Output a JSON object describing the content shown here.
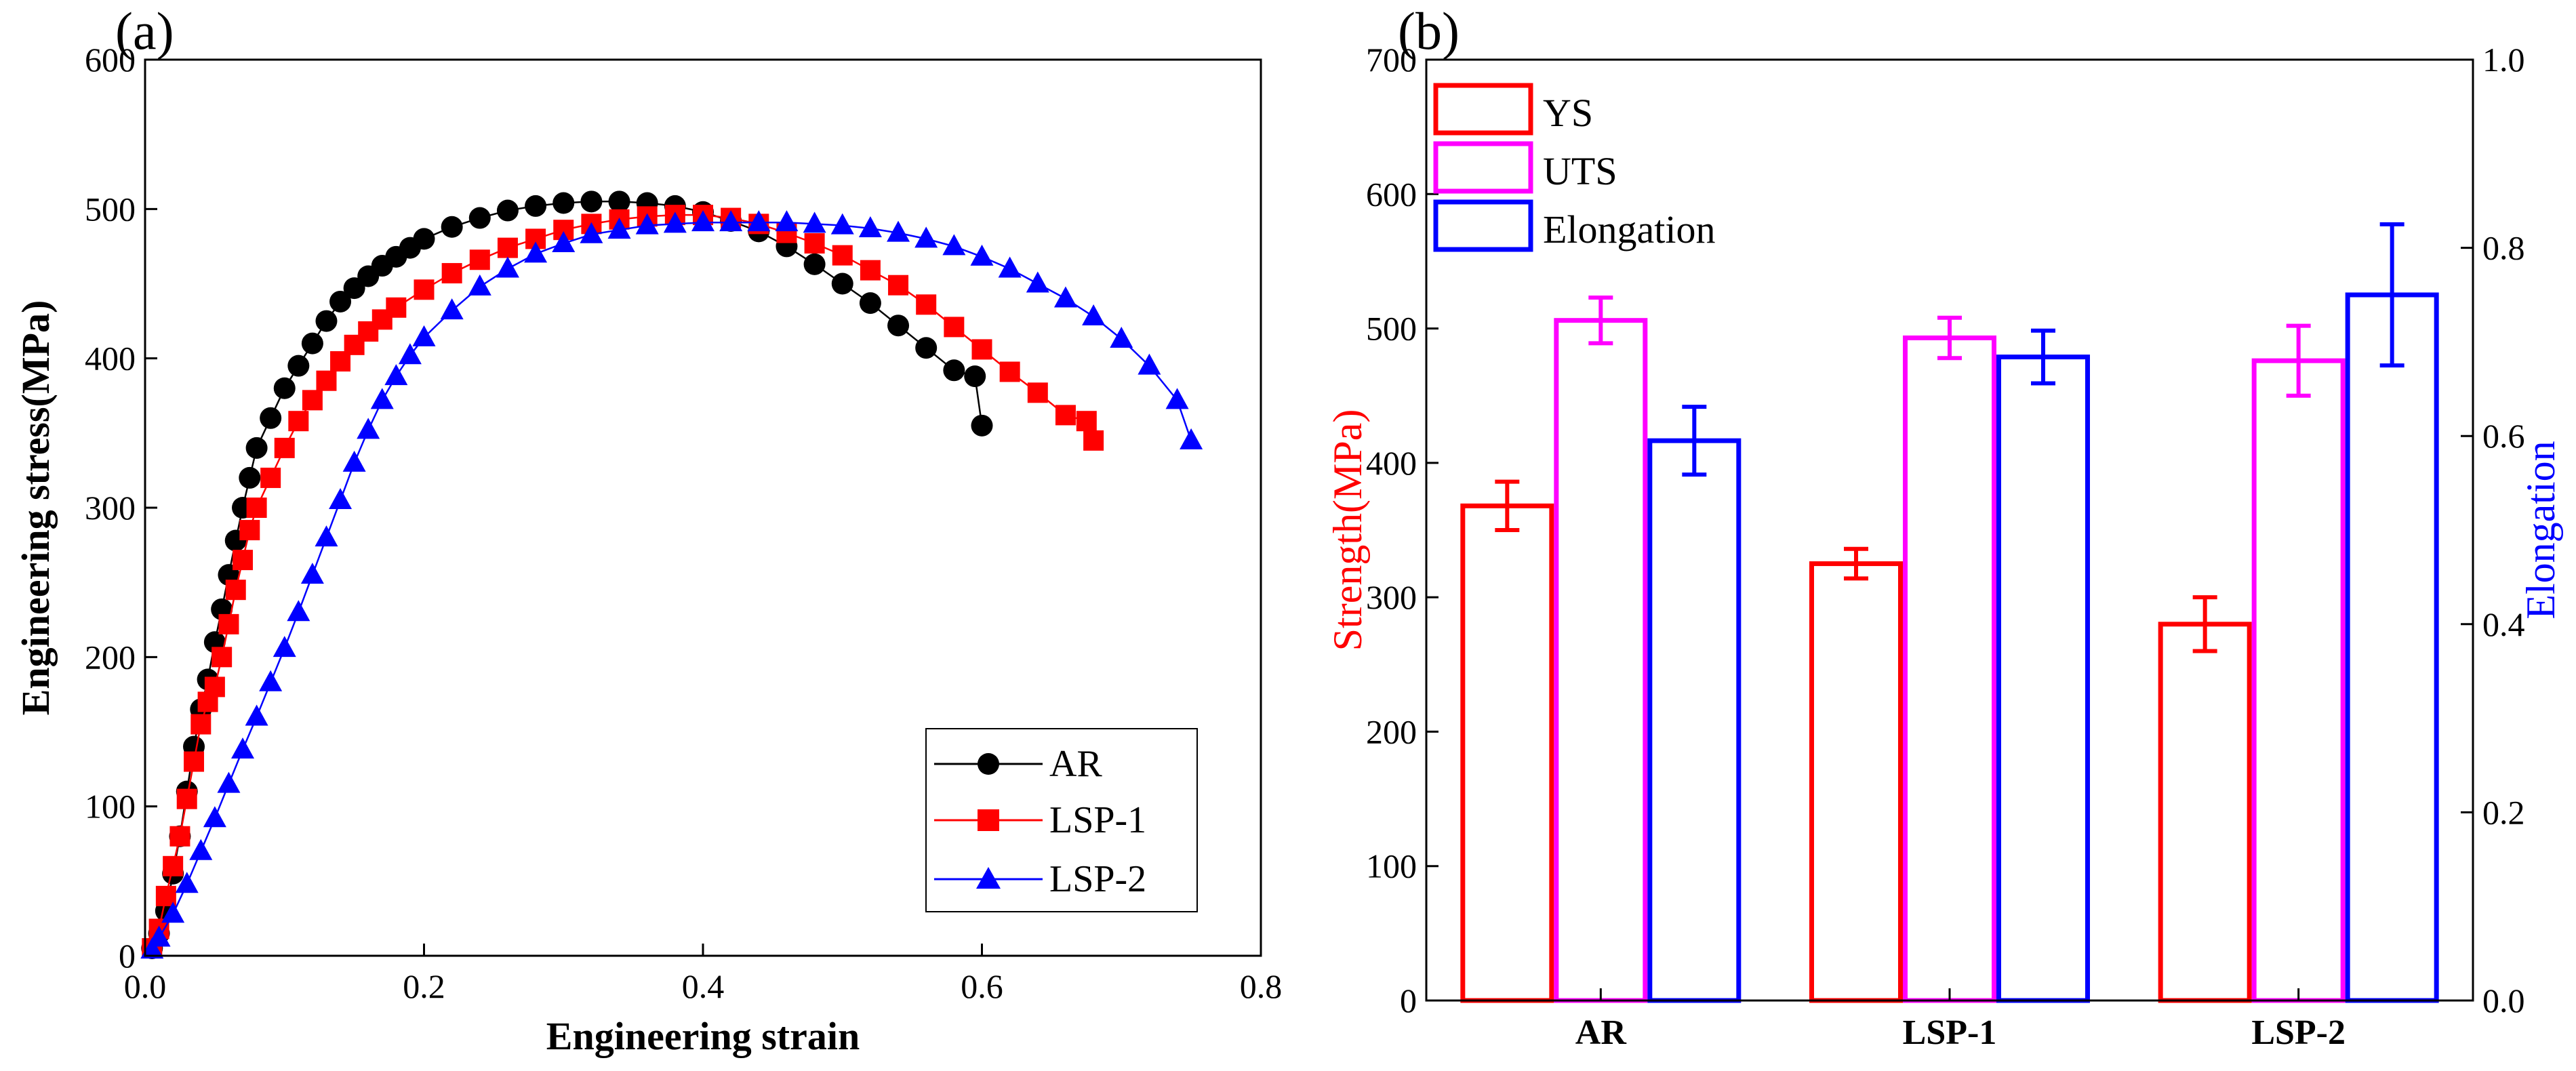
{
  "panels": {
    "a_label": "(a)",
    "b_label": "(b)"
  },
  "colors": {
    "black": "#000000",
    "red": "#ff0000",
    "magenta": "#ff00ff",
    "blue": "#0000ff"
  },
  "chart_data": [
    {
      "type": "line",
      "panel": "(a)",
      "xlabel": "Engineering strain",
      "ylabel": "Engineering stress(MPa)",
      "xlim": [
        0.0,
        0.8
      ],
      "ylim": [
        0,
        600
      ],
      "xticks": [
        0.0,
        0.2,
        0.4,
        0.6,
        0.8
      ],
      "xtick_labels": [
        "0.0",
        "0.2",
        "0.4",
        "0.6",
        "0.8"
      ],
      "yticks": [
        0,
        100,
        200,
        300,
        400,
        500,
        600
      ],
      "ytick_labels": [
        "0",
        "100",
        "200",
        "300",
        "400",
        "500",
        "600"
      ],
      "legend_position": "bottom-right",
      "series": [
        {
          "name": "AR",
          "marker": "circle",
          "color": "#000000",
          "x": [
            0.005,
            0.01,
            0.015,
            0.02,
            0.025,
            0.03,
            0.035,
            0.04,
            0.045,
            0.05,
            0.055,
            0.06,
            0.065,
            0.07,
            0.075,
            0.08,
            0.09,
            0.1,
            0.11,
            0.12,
            0.13,
            0.14,
            0.15,
            0.16,
            0.17,
            0.18,
            0.19,
            0.2,
            0.22,
            0.24,
            0.26,
            0.28,
            0.3,
            0.32,
            0.34,
            0.36,
            0.38,
            0.4,
            0.42,
            0.44,
            0.46,
            0.48,
            0.5,
            0.52,
            0.54,
            0.56,
            0.58,
            0.595,
            0.6
          ],
          "y": [
            5,
            15,
            30,
            55,
            80,
            110,
            140,
            165,
            185,
            210,
            232,
            255,
            278,
            300,
            320,
            340,
            360,
            380,
            395,
            410,
            425,
            438,
            447,
            455,
            462,
            468,
            474,
            480,
            488,
            494,
            499,
            502,
            504,
            505,
            505,
            504,
            502,
            498,
            492,
            485,
            475,
            463,
            450,
            437,
            422,
            407,
            392,
            388,
            355
          ]
        },
        {
          "name": "LSP-1",
          "marker": "square",
          "color": "#ff0000",
          "x": [
            0.005,
            0.01,
            0.015,
            0.02,
            0.025,
            0.03,
            0.035,
            0.04,
            0.045,
            0.05,
            0.055,
            0.06,
            0.065,
            0.07,
            0.075,
            0.08,
            0.09,
            0.1,
            0.11,
            0.12,
            0.13,
            0.14,
            0.15,
            0.16,
            0.17,
            0.18,
            0.2,
            0.22,
            0.24,
            0.26,
            0.28,
            0.3,
            0.32,
            0.34,
            0.36,
            0.38,
            0.4,
            0.42,
            0.44,
            0.46,
            0.48,
            0.5,
            0.52,
            0.54,
            0.56,
            0.58,
            0.6,
            0.62,
            0.64,
            0.66,
            0.675,
            0.68
          ],
          "y": [
            5,
            18,
            40,
            60,
            80,
            105,
            130,
            155,
            170,
            180,
            200,
            222,
            245,
            265,
            285,
            300,
            320,
            340,
            358,
            372,
            385,
            398,
            409,
            418,
            426,
            434,
            446,
            457,
            466,
            474,
            480,
            486,
            490,
            493,
            495,
            496,
            496,
            494,
            490,
            484,
            477,
            469,
            459,
            449,
            436,
            421,
            406,
            391,
            377,
            362,
            358,
            345
          ]
        },
        {
          "name": "LSP-2",
          "marker": "triangle",
          "color": "#0000ff",
          "x": [
            0.005,
            0.01,
            0.02,
            0.03,
            0.04,
            0.05,
            0.06,
            0.07,
            0.08,
            0.09,
            0.1,
            0.11,
            0.12,
            0.13,
            0.14,
            0.15,
            0.16,
            0.17,
            0.18,
            0.19,
            0.2,
            0.22,
            0.24,
            0.26,
            0.28,
            0.3,
            0.32,
            0.34,
            0.36,
            0.38,
            0.4,
            0.42,
            0.44,
            0.46,
            0.48,
            0.5,
            0.52,
            0.54,
            0.56,
            0.58,
            0.6,
            0.62,
            0.64,
            0.66,
            0.68,
            0.7,
            0.72,
            0.74,
            0.75
          ],
          "y": [
            4,
            12,
            28,
            48,
            70,
            92,
            115,
            138,
            160,
            183,
            206,
            230,
            255,
            280,
            305,
            330,
            352,
            372,
            388,
            402,
            414,
            432,
            448,
            460,
            470,
            477,
            483,
            486,
            489,
            490,
            491,
            491,
            491,
            491,
            490,
            489,
            487,
            484,
            480,
            475,
            468,
            460,
            450,
            440,
            428,
            413,
            395,
            372,
            345
          ]
        }
      ]
    },
    {
      "type": "bar",
      "panel": "(b)",
      "categories": [
        "AR",
        "LSP-1",
        "LSP-2"
      ],
      "ylabel": "Strength(MPa)",
      "ylim": [
        0,
        700
      ],
      "yticks": [
        0,
        100,
        200,
        300,
        400,
        500,
        600,
        700
      ],
      "ytick_labels": [
        "0",
        "100",
        "200",
        "300",
        "400",
        "500",
        "600",
        "700"
      ],
      "y2label": "Elongation",
      "y2lim": [
        0.0,
        1.0
      ],
      "y2ticks": [
        0.0,
        0.2,
        0.4,
        0.6,
        0.8,
        1.0
      ],
      "y2tick_labels": [
        "0.0",
        "0.2",
        "0.4",
        "0.6",
        "0.8",
        "1.0"
      ],
      "legend_position": "top-left",
      "series": [
        {
          "name": "YS",
          "axis": "left",
          "color": "#ff0000",
          "values": [
            368,
            325,
            280
          ],
          "errors": [
            18,
            11,
            20
          ]
        },
        {
          "name": "UTS",
          "axis": "left",
          "color": "#ff00ff",
          "values": [
            506,
            493,
            476
          ],
          "errors": [
            17,
            15,
            26
          ]
        },
        {
          "name": "Elongation",
          "axis": "right",
          "color": "#0000ff",
          "values": [
            0.595,
            0.684,
            0.75
          ],
          "errors": [
            0.036,
            0.028,
            0.075
          ]
        }
      ]
    }
  ]
}
